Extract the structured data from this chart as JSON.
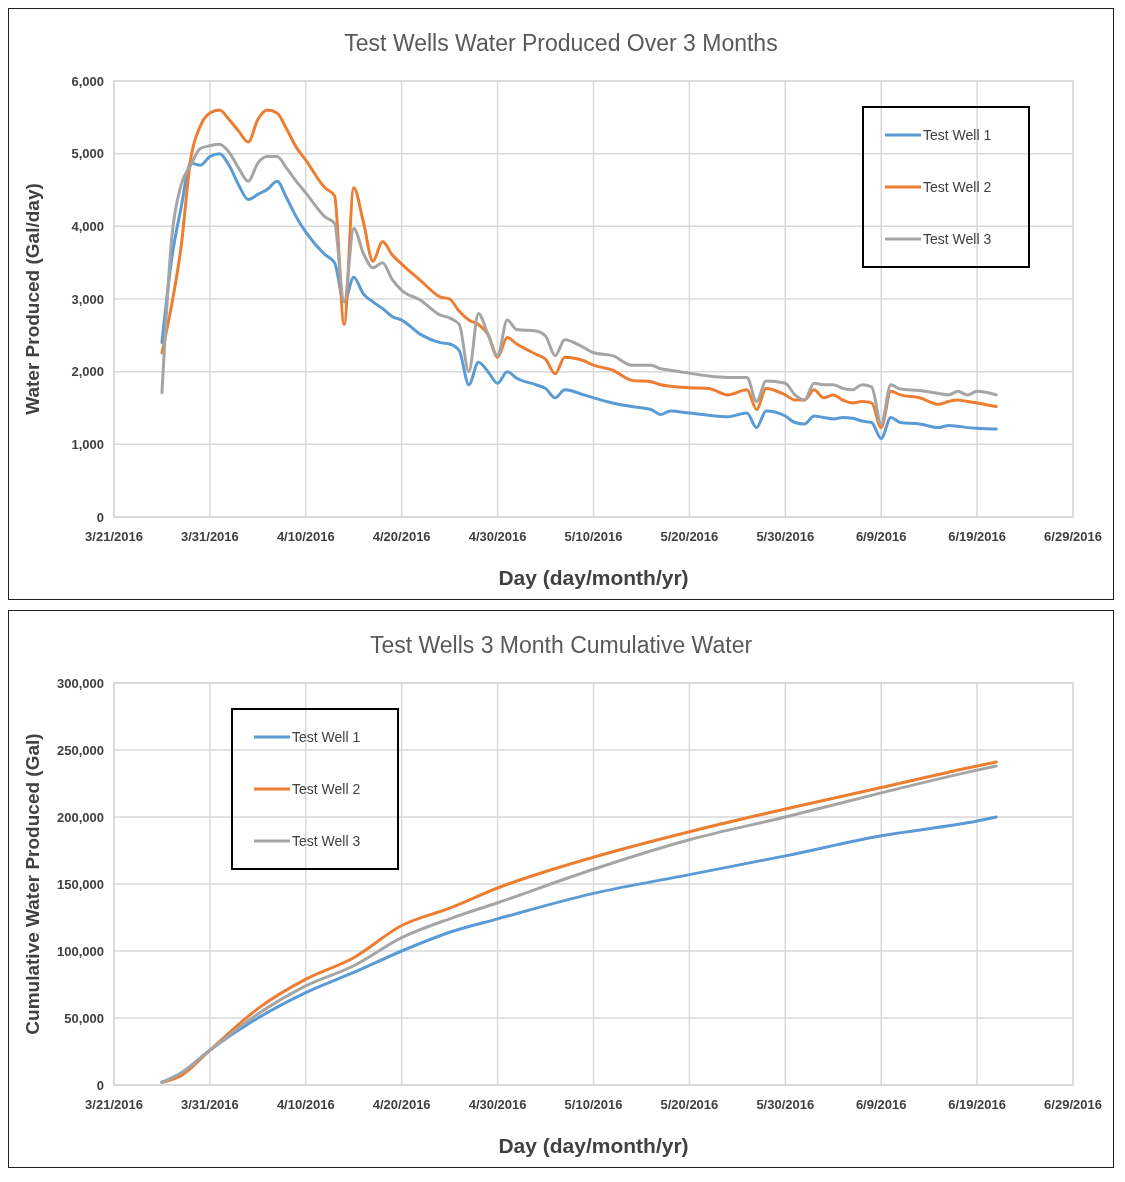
{
  "chart_data": [
    {
      "type": "line",
      "title": "Test Wells Water Produced Over 3 Months",
      "xlabel": "Day (day/month/yr)",
      "ylabel": "Water Produced (Gal/day)",
      "x": [
        "2016-03-26",
        "2016-03-27",
        "2016-03-28",
        "2016-03-29",
        "2016-03-30",
        "2016-03-31",
        "2016-04-01",
        "2016-04-02",
        "2016-04-03",
        "2016-04-04",
        "2016-04-05",
        "2016-04-06",
        "2016-04-07",
        "2016-04-08",
        "2016-04-09",
        "2016-04-10",
        "2016-04-12",
        "2016-04-13",
        "2016-04-14",
        "2016-04-15",
        "2016-04-16",
        "2016-04-17",
        "2016-04-18",
        "2016-04-19",
        "2016-04-20",
        "2016-04-22",
        "2016-04-24",
        "2016-04-25",
        "2016-04-26",
        "2016-04-27",
        "2016-04-28",
        "2016-04-29",
        "2016-04-30",
        "2016-05-01",
        "2016-05-02",
        "2016-05-04",
        "2016-05-05",
        "2016-05-06",
        "2016-05-07",
        "2016-05-09",
        "2016-05-10",
        "2016-05-12",
        "2016-05-14",
        "2016-05-16",
        "2016-05-17",
        "2016-05-18",
        "2016-05-20",
        "2016-05-22",
        "2016-05-24",
        "2016-05-26",
        "2016-05-27",
        "2016-05-28",
        "2016-05-30",
        "2016-05-31",
        "2016-06-01",
        "2016-06-02",
        "2016-06-03",
        "2016-06-04",
        "2016-06-05",
        "2016-06-06",
        "2016-06-07",
        "2016-06-08",
        "2016-06-09",
        "2016-06-10",
        "2016-06-11",
        "2016-06-13",
        "2016-06-15",
        "2016-06-16",
        "2016-06-17",
        "2016-06-18",
        "2016-06-19",
        "2016-06-21"
      ],
      "series": [
        {
          "name": "Test Well 1",
          "color": "#5b9bd5",
          "values": [
            2400,
            3540,
            4260,
            4870,
            4840,
            4960,
            5000,
            4840,
            4570,
            4370,
            4440,
            4510,
            4620,
            4390,
            4130,
            3920,
            3610,
            3500,
            2960,
            3300,
            3070,
            2960,
            2870,
            2760,
            2710,
            2510,
            2400,
            2380,
            2290,
            1820,
            2130,
            2000,
            1840,
            2000,
            1910,
            1820,
            1770,
            1640,
            1750,
            1680,
            1640,
            1570,
            1520,
            1480,
            1410,
            1460,
            1430,
            1400,
            1380,
            1430,
            1230,
            1460,
            1390,
            1300,
            1280,
            1390,
            1370,
            1350,
            1370,
            1360,
            1320,
            1300,
            1080,
            1370,
            1300,
            1280,
            1230,
            1260,
            1250,
            1230,
            1220,
            1210
          ]
        },
        {
          "name": "Test Well 2",
          "color": "#ed7d31",
          "values": [
            2260,
            2910,
            3720,
            4930,
            5380,
            5560,
            5600,
            5470,
            5310,
            5160,
            5470,
            5600,
            5560,
            5340,
            5090,
            4910,
            4530,
            4420,
            2650,
            4530,
            4060,
            3520,
            3790,
            3610,
            3480,
            3250,
            3030,
            3000,
            2830,
            2710,
            2650,
            2510,
            2200,
            2470,
            2380,
            2240,
            2170,
            1970,
            2200,
            2150,
            2090,
            2020,
            1880,
            1860,
            1820,
            1800,
            1780,
            1770,
            1680,
            1750,
            1480,
            1770,
            1680,
            1610,
            1610,
            1750,
            1640,
            1680,
            1610,
            1570,
            1590,
            1570,
            1230,
            1730,
            1680,
            1640,
            1550,
            1590,
            1610,
            1590,
            1570,
            1520
          ]
        },
        {
          "name": "Test Well 3",
          "color": "#a5a5a5",
          "values": [
            1710,
            3810,
            4570,
            4840,
            5070,
            5110,
            5130,
            5020,
            4800,
            4620,
            4870,
            4960,
            4960,
            4800,
            4620,
            4460,
            4130,
            4040,
            2960,
            3970,
            3630,
            3430,
            3500,
            3270,
            3120,
            2980,
            2780,
            2740,
            2650,
            2000,
            2800,
            2510,
            2220,
            2710,
            2580,
            2560,
            2490,
            2220,
            2440,
            2330,
            2260,
            2220,
            2090,
            2090,
            2040,
            2020,
            1980,
            1940,
            1920,
            1920,
            1590,
            1870,
            1840,
            1680,
            1610,
            1840,
            1820,
            1820,
            1770,
            1750,
            1820,
            1790,
            1280,
            1820,
            1760,
            1740,
            1700,
            1680,
            1730,
            1680,
            1730,
            1680
          ]
        }
      ],
      "xlim": [
        "2016-03-21",
        "2016-06-29"
      ],
      "xticks": [
        {
          "value": "2016-03-21",
          "label": "3/21/2016"
        },
        {
          "value": "2016-03-31",
          "label": "3/31/2016"
        },
        {
          "value": "2016-04-10",
          "label": "4/10/2016"
        },
        {
          "value": "2016-04-20",
          "label": "4/20/2016"
        },
        {
          "value": "2016-04-30",
          "label": "4/30/2016"
        },
        {
          "value": "2016-05-10",
          "label": "5/10/2016"
        },
        {
          "value": "2016-05-20",
          "label": "5/20/2016"
        },
        {
          "value": "2016-05-30",
          "label": "5/30/2016"
        },
        {
          "value": "2016-06-09",
          "label": "6/9/2016"
        },
        {
          "value": "2016-06-19",
          "label": "6/19/2016"
        },
        {
          "value": "2016-06-29",
          "label": "6/29/2016"
        }
      ],
      "ylim": [
        0,
        6000
      ],
      "yticks": [
        0,
        {
          "value": 1000,
          "label": "1,000"
        },
        {
          "value": 2000,
          "label": "2,000"
        },
        {
          "value": 3000,
          "label": "3,000"
        },
        {
          "value": 4000,
          "label": "4,000"
        },
        {
          "value": 5000,
          "label": "5,000"
        },
        {
          "value": 6000,
          "label": "6,000"
        }
      ],
      "grid": true,
      "legend": "top right"
    },
    {
      "type": "line",
      "title": "Test Wells 3 Month Cumulative Water",
      "xlabel": "Day (day/month/yr)",
      "ylabel": "Cumulative Water Produced (Gal)",
      "x": [
        "2016-03-26",
        "2016-03-28",
        "2016-03-31",
        "2016-04-05",
        "2016-04-10",
        "2016-04-15",
        "2016-04-20",
        "2016-04-25",
        "2016-04-30",
        "2016-05-10",
        "2016-05-20",
        "2016-05-30",
        "2016-06-09",
        "2016-06-19",
        "2016-06-21"
      ],
      "series": [
        {
          "name": "Test Well 1",
          "color": "#5b9bd5",
          "values": [
            2000,
            9000,
            26000,
            50000,
            69000,
            84000,
            100000,
            114000,
            124000,
            143000,
            157000,
            171000,
            186000,
            197000,
            200000
          ]
        },
        {
          "name": "Test Well 2",
          "color": "#ed7d31",
          "values": [
            2000,
            7000,
            26000,
            57000,
            79000,
            95000,
            119000,
            132000,
            147000,
            170000,
            189000,
            206000,
            222000,
            238000,
            241000
          ]
        },
        {
          "name": "Test Well 3",
          "color": "#a5a5a5",
          "values": [
            2000,
            9000,
            26000,
            53000,
            74000,
            89000,
            110000,
            124000,
            136000,
            161000,
            183000,
            200000,
            218000,
            235000,
            238000
          ]
        }
      ],
      "xlim": [
        "2016-03-21",
        "2016-06-29"
      ],
      "xticks": [
        {
          "value": "2016-03-21",
          "label": "3/21/2016"
        },
        {
          "value": "2016-03-31",
          "label": "3/31/2016"
        },
        {
          "value": "2016-04-10",
          "label": "4/10/2016"
        },
        {
          "value": "2016-04-20",
          "label": "4/20/2016"
        },
        {
          "value": "2016-04-30",
          "label": "4/30/2016"
        },
        {
          "value": "2016-05-10",
          "label": "5/10/2016"
        },
        {
          "value": "2016-05-20",
          "label": "5/20/2016"
        },
        {
          "value": "2016-05-30",
          "label": "5/30/2016"
        },
        {
          "value": "2016-06-09",
          "label": "6/9/2016"
        },
        {
          "value": "2016-06-19",
          "label": "6/19/2016"
        },
        {
          "value": "2016-06-29",
          "label": "6/29/2016"
        }
      ],
      "ylim": [
        0,
        300000
      ],
      "yticks": [
        0,
        {
          "value": 50000,
          "label": "50,000"
        },
        {
          "value": 100000,
          "label": "100,000"
        },
        {
          "value": 150000,
          "label": "150,000"
        },
        {
          "value": 200000,
          "label": "200,000"
        },
        {
          "value": 250000,
          "label": "250,000"
        },
        {
          "value": 300000,
          "label": "300,000"
        }
      ],
      "grid": true,
      "legend": "top left"
    }
  ]
}
